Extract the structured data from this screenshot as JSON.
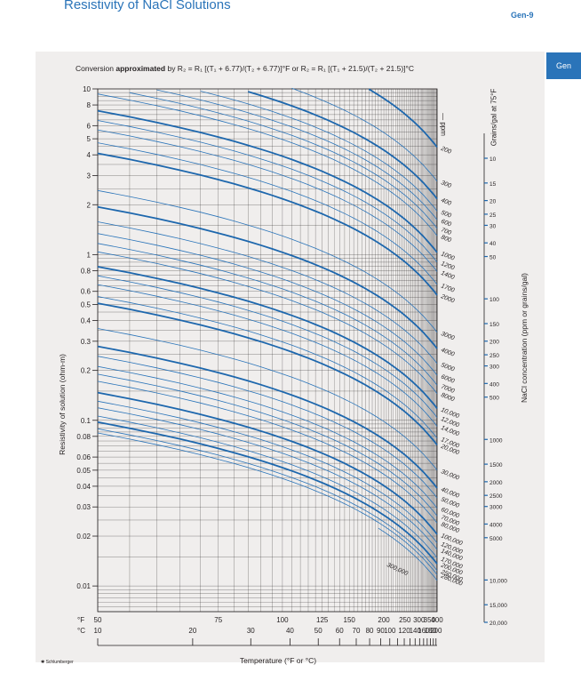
{
  "header": {
    "title": "Resistivity of NaCl Solutions",
    "page_number": "Gen-9",
    "tab_label": "Gen"
  },
  "formula": {
    "prefix": "Conversion ",
    "bold": "approximated",
    "rest": " by R₂ = R₁ [(T₁ + 6.77)/(T₂ + 6.77)]°F or R₂ = R₁ [(T₁ + 21.5)/(T₂ + 21.5)]°C"
  },
  "chart_data": {
    "type": "line",
    "title": "Resistivity of NaCl Solutions",
    "xlabel": "Temperature (°F or °C)",
    "ylabel": "Resistivity of solution (ohm-m)",
    "right_label": "NaCl concentration (ppm or grains/gal)",
    "ppm_axis_label": "— ppm",
    "grains_axis_label": "Grains/gal at 75°F",
    "x_scale": "reciprocal",
    "y_scale": "log",
    "ylim": [
      0.007,
      10
    ],
    "xlim_F": [
      50,
      400
    ],
    "x_ticks_F": [
      50,
      75,
      100,
      125,
      150,
      200,
      250,
      300,
      350,
      400
    ],
    "x_ticks_C": [
      10,
      20,
      30,
      40,
      50,
      60,
      70,
      80,
      90,
      100,
      120,
      140,
      160,
      180,
      200
    ],
    "x_unit_F": "°F",
    "x_unit_C": "°C",
    "y_ticks": [
      10,
      8,
      6,
      5,
      4,
      3,
      2,
      1,
      0.8,
      0.6,
      0.5,
      0.4,
      0.3,
      0.2,
      0.1,
      0.08,
      0.06,
      0.05,
      0.04,
      0.03,
      0.02,
      0.01
    ],
    "y_tick_labels": [
      "10",
      "8",
      "6",
      "5",
      "4",
      "3",
      "2",
      "1",
      "0.8",
      "0.6",
      "0.5",
      "0.4",
      "0.3",
      "0.2",
      "0.1",
      "0.08",
      "0.06",
      "0.05",
      "0.04",
      "0.03",
      "0.02",
      "0.01"
    ],
    "ppm_labels": [
      {
        "label": "200",
        "rho400": 4.45
      },
      {
        "label": "300",
        "rho400": 2.77
      },
      {
        "label": "400",
        "rho400": 2.17
      },
      {
        "label": "500",
        "rho400": 1.83
      },
      {
        "label": "600",
        "rho400": 1.62
      },
      {
        "label": "700",
        "rho400": 1.44
      },
      {
        "label": "800",
        "rho400": 1.3
      },
      {
        "label": "1000",
        "rho400": 1.03
      },
      {
        "label": "1200",
        "rho400": 0.9
      },
      {
        "label": "1400",
        "rho400": 0.79
      },
      {
        "label": "1700",
        "rho400": 0.66
      },
      {
        "label": "2000",
        "rho400": 0.57
      },
      {
        "label": "3000",
        "rho400": 0.34
      },
      {
        "label": "4000",
        "rho400": 0.271
      },
      {
        "label": "5000",
        "rho400": 0.22
      },
      {
        "label": "6000",
        "rho400": 0.187
      },
      {
        "label": "7000",
        "rho400": 0.163
      },
      {
        "label": "8000",
        "rho400": 0.145
      },
      {
        "label": "10,000",
        "rho400": 0.118
      },
      {
        "label": "12,000",
        "rho400": 0.104
      },
      {
        "label": "14,000",
        "rho400": 0.092
      },
      {
        "label": "17,000",
        "rho400": 0.078
      },
      {
        "label": "20,000",
        "rho400": 0.071
      },
      {
        "label": "30,000",
        "rho400": 0.05
      },
      {
        "label": "40,000",
        "rho400": 0.039
      },
      {
        "label": "50,000",
        "rho400": 0.034
      },
      {
        "label": "60,000",
        "rho400": 0.0295
      },
      {
        "label": "70,000",
        "rho400": 0.0265
      },
      {
        "label": "80,000",
        "rho400": 0.024
      },
      {
        "label": "100,000",
        "rho400": 0.0205
      },
      {
        "label": "120,000",
        "rho400": 0.0182
      },
      {
        "label": "140,000",
        "rho400": 0.0166
      },
      {
        "label": "170,000",
        "rho400": 0.0148
      },
      {
        "label": "200,000",
        "rho400": 0.0136
      },
      {
        "label": "250,000",
        "rho400": 0.0124
      },
      {
        "label": "280,000",
        "rho400": 0.0117
      }
    ],
    "label_300000": "300,000",
    "grains_labels": [
      "10",
      "15",
      "20",
      "25",
      "30",
      "40",
      "50",
      "100",
      "150",
      "200",
      "250",
      "300",
      "400",
      "500",
      "1000",
      "1500",
      "2000",
      "2500",
      "3000",
      "4000",
      "5000",
      "10,000",
      "15,000",
      "20,000"
    ],
    "grains_values": [
      10,
      15,
      20,
      25,
      30,
      40,
      50,
      100,
      150,
      200,
      250,
      300,
      400,
      500,
      1000,
      1500,
      2000,
      2500,
      3000,
      4000,
      5000,
      10000,
      15000,
      20000
    ],
    "colors": {
      "thin_line": "#2a74b9",
      "thick_line": "#1d67ad",
      "grid": "#231f20",
      "panel": "#f0eeed"
    },
    "grid": true
  },
  "footer": {
    "logo": "✱ Schlumberger"
  }
}
